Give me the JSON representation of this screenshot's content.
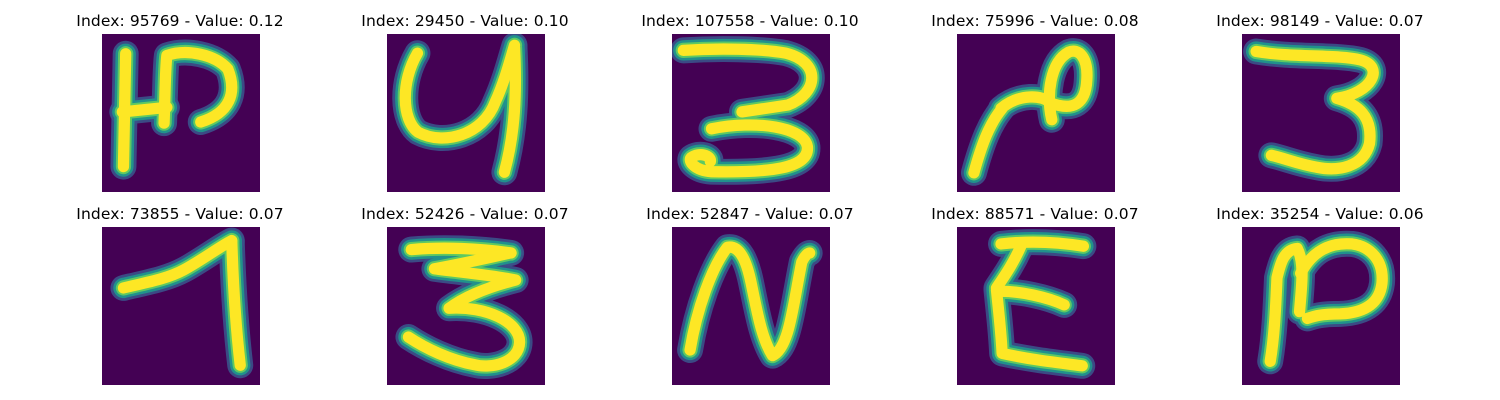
{
  "figure": {
    "panels": [
      {
        "title": "Index: 95769 - Value: 0.12",
        "glyph": "hook-h"
      },
      {
        "title": "Index: 29450 - Value: 0.10",
        "glyph": "u-shape"
      },
      {
        "title": "Index: 107558 - Value: 0.10",
        "glyph": "three-tail"
      },
      {
        "title": "Index: 75996 - Value: 0.08",
        "glyph": "n-loop"
      },
      {
        "title": "Index: 98149 - Value: 0.07",
        "glyph": "three"
      },
      {
        "title": "Index: 73855 - Value: 0.07",
        "glyph": "seven-hook"
      },
      {
        "title": "Index: 52426 - Value: 0.07",
        "glyph": "three-bold"
      },
      {
        "title": "Index: 52847 - Value: 0.07",
        "glyph": "n-zigzag"
      },
      {
        "title": "Index: 88571 - Value: 0.07",
        "glyph": "epsilon"
      },
      {
        "title": "Index: 35254 - Value: 0.06",
        "glyph": "n-script"
      }
    ]
  },
  "colors": {
    "background": "#440154",
    "halo": "#21918c",
    "edge": "#5ec962",
    "stroke": "#fde725"
  }
}
